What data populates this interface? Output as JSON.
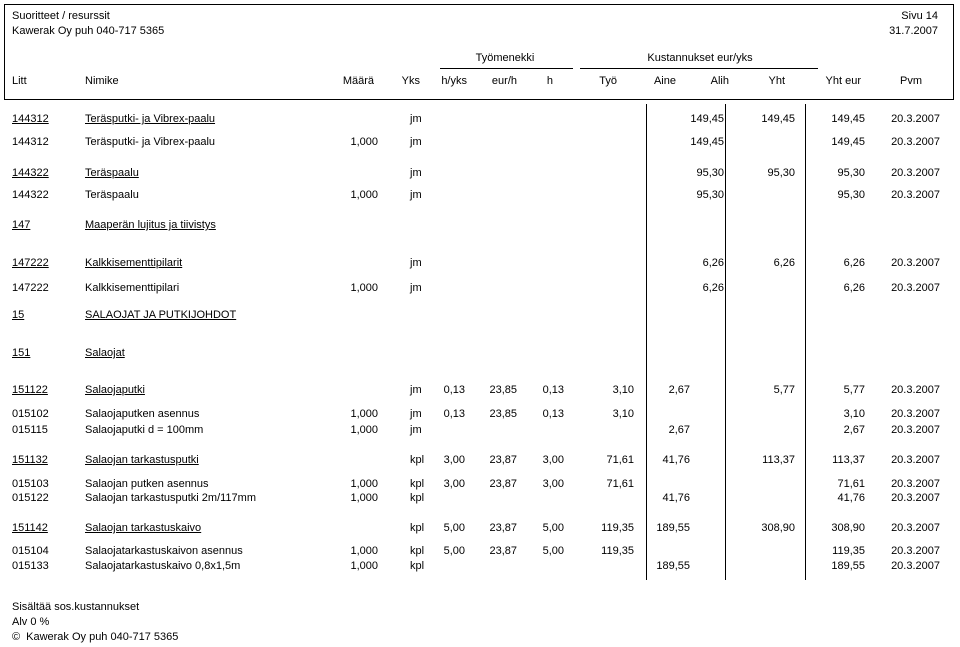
{
  "header": {
    "title": "Suoritteet / resurssit",
    "company": "Kawerak Oy puh 040-717 5365",
    "page": "Sivu 14",
    "date": "31.7.2007"
  },
  "groups": {
    "labor": "Työmenekki",
    "costs": "Kustannukset eur/yks"
  },
  "columns": [
    "Litt",
    "Nimike",
    "Määrä",
    "Yks",
    "h/yks",
    "eur/h",
    "h",
    "Työ",
    "Aine",
    "Alih",
    "Yht",
    "Yht eur",
    "Pvm"
  ],
  "rows": [
    {
      "litt": "144312",
      "nimike": "Teräsputki- ja Vibrex-paalu",
      "maara": "",
      "yks": "jm",
      "hyks": "",
      "eurh": "",
      "h": "",
      "tyo": "",
      "aine": "",
      "alih": "149,45",
      "yht": "149,45",
      "yhteur": "149,45",
      "pvm": "20.3.2007",
      "u": true
    },
    {
      "litt": "144312",
      "nimike": "Teräsputki- ja Vibrex-paalu",
      "maara": "1,000",
      "yks": "jm",
      "hyks": "",
      "eurh": "",
      "h": "",
      "tyo": "",
      "aine": "",
      "alih": "149,45",
      "yht": "",
      "yhteur": "149,45",
      "pvm": "20.3.2007",
      "u": false
    },
    {
      "litt": "144322",
      "nimike": "Teräspaalu",
      "maara": "",
      "yks": "jm",
      "hyks": "",
      "eurh": "",
      "h": "",
      "tyo": "",
      "aine": "",
      "alih": "95,30",
      "yht": "95,30",
      "yhteur": "95,30",
      "pvm": "20.3.2007",
      "u": true
    },
    {
      "litt": "144322",
      "nimike": "Teräspaalu",
      "maara": "1,000",
      "yks": "jm",
      "hyks": "",
      "eurh": "",
      "h": "",
      "tyo": "",
      "aine": "",
      "alih": "95,30",
      "yht": "",
      "yhteur": "95,30",
      "pvm": "20.3.2007",
      "u": false
    },
    {
      "litt": "147",
      "nimike": "Maaperän lujitus ja tiivistys",
      "maara": "",
      "yks": "",
      "hyks": "",
      "eurh": "",
      "h": "",
      "tyo": "",
      "aine": "",
      "alih": "",
      "yht": "",
      "yhteur": "",
      "pvm": "",
      "u": true
    },
    {
      "litt": "147222",
      "nimike": "Kalkkisementtipilarit",
      "maara": "",
      "yks": "jm",
      "hyks": "",
      "eurh": "",
      "h": "",
      "tyo": "",
      "aine": "",
      "alih": "6,26",
      "yht": "6,26",
      "yhteur": "6,26",
      "pvm": "20.3.2007",
      "u": true
    },
    {
      "litt": "147222",
      "nimike": "Kalkkisementtipilari",
      "maara": "1,000",
      "yks": "jm",
      "hyks": "",
      "eurh": "",
      "h": "",
      "tyo": "",
      "aine": "",
      "alih": "6,26",
      "yht": "",
      "yhteur": "6,26",
      "pvm": "20.3.2007",
      "u": false
    },
    {
      "litt": "15",
      "nimike": "SALAOJAT JA PUTKIJOHDOT",
      "maara": "",
      "yks": "",
      "hyks": "",
      "eurh": "",
      "h": "",
      "tyo": "",
      "aine": "",
      "alih": "",
      "yht": "",
      "yhteur": "",
      "pvm": "",
      "u": true
    },
    {
      "litt": "151",
      "nimike": "Salaojat",
      "maara": "",
      "yks": "",
      "hyks": "",
      "eurh": "",
      "h": "",
      "tyo": "",
      "aine": "",
      "alih": "",
      "yht": "",
      "yhteur": "",
      "pvm": "",
      "u": true
    },
    {
      "litt": "151122",
      "nimike": "Salaojaputki",
      "maara": "",
      "yks": "jm",
      "hyks": "0,13",
      "eurh": "23,85",
      "h": "0,13",
      "tyo": "3,10",
      "aine": "2,67",
      "alih": "",
      "yht": "5,77",
      "yhteur": "5,77",
      "pvm": "20.3.2007",
      "u": true
    },
    {
      "litt": "015102",
      "nimike": "Salaojaputken asennus",
      "maara": "1,000",
      "yks": "jm",
      "hyks": "0,13",
      "eurh": "23,85",
      "h": "0,13",
      "tyo": "3,10",
      "aine": "",
      "alih": "",
      "yht": "",
      "yhteur": "3,10",
      "pvm": "20.3.2007",
      "u": false
    },
    {
      "litt": "015115",
      "nimike": "Salaojaputki d = 100mm",
      "maara": "1,000",
      "yks": "jm",
      "hyks": "",
      "eurh": "",
      "h": "",
      "tyo": "",
      "aine": "2,67",
      "alih": "",
      "yht": "",
      "yhteur": "2,67",
      "pvm": "20.3.2007",
      "u": false
    },
    {
      "litt": "151132",
      "nimike": "Salaojan tarkastusputki",
      "maara": "",
      "yks": "kpl",
      "hyks": "3,00",
      "eurh": "23,87",
      "h": "3,00",
      "tyo": "71,61",
      "aine": "41,76",
      "alih": "",
      "yht": "113,37",
      "yhteur": "113,37",
      "pvm": "20.3.2007",
      "u": true
    },
    {
      "litt": "015103",
      "nimike": "Salaojan putken asennus",
      "maara": "1,000",
      "yks": "kpl",
      "hyks": "3,00",
      "eurh": "23,87",
      "h": "3,00",
      "tyo": "71,61",
      "aine": "",
      "alih": "",
      "yht": "",
      "yhteur": "71,61",
      "pvm": "20.3.2007",
      "u": false
    },
    {
      "litt": "015122",
      "nimike": "Salaojan tarkastusputki 2m/117mm",
      "maara": "1,000",
      "yks": "kpl",
      "hyks": "",
      "eurh": "",
      "h": "",
      "tyo": "",
      "aine": "41,76",
      "alih": "",
      "yht": "",
      "yhteur": "41,76",
      "pvm": "20.3.2007",
      "u": false
    },
    {
      "litt": "151142",
      "nimike": "Salaojan tarkastuskaivo",
      "maara": "",
      "yks": "kpl",
      "hyks": "5,00",
      "eurh": "23,87",
      "h": "5,00",
      "tyo": "119,35",
      "aine": "189,55",
      "alih": "",
      "yht": "308,90",
      "yhteur": "308,90",
      "pvm": "20.3.2007",
      "u": true
    },
    {
      "litt": "015104",
      "nimike": "Salaojatarkastuskaivon asennus",
      "maara": "1,000",
      "yks": "kpl",
      "hyks": "5,00",
      "eurh": "23,87",
      "h": "5,00",
      "tyo": "119,35",
      "aine": "",
      "alih": "",
      "yht": "",
      "yhteur": "119,35",
      "pvm": "20.3.2007",
      "u": false
    },
    {
      "litt": "015133",
      "nimike": "Salaojatarkastuskaivo 0,8x1,5m",
      "maara": "1,000",
      "yks": "kpl",
      "hyks": "",
      "eurh": "",
      "h": "",
      "tyo": "",
      "aine": "189,55",
      "alih": "",
      "yht": "",
      "yhteur": "189,55",
      "pvm": "20.3.2007",
      "u": false
    }
  ],
  "footer": {
    "line1": "Sisältää sos.kustannukset",
    "line2": "Alv 0 %",
    "copyright_symbol": "©",
    "line3": "Kawerak Oy puh 040-717 5365"
  }
}
